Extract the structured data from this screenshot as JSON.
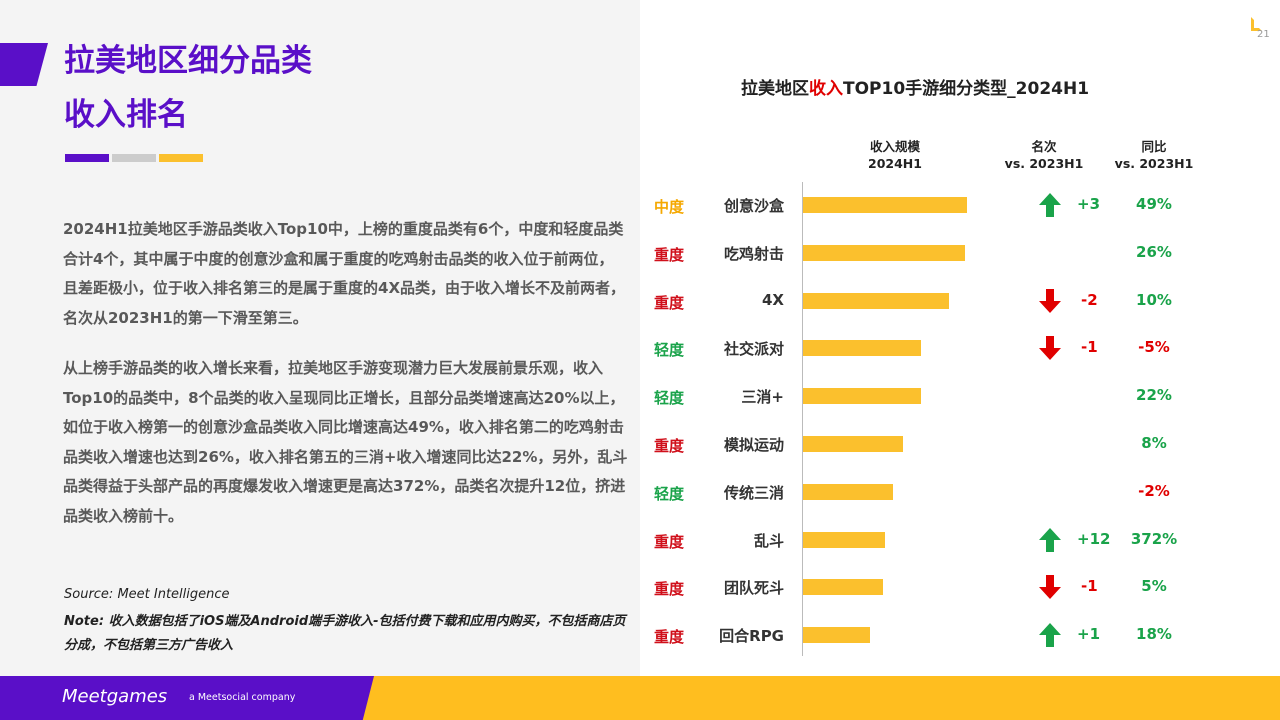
{
  "colors": {
    "purple": "#5a0fc8",
    "yellow_bar": "#fbc02d",
    "footer_yellow": "#ffbe1f",
    "mid_tier": "#f5a800",
    "heavy_tier": "#d0101b",
    "light_tier": "#1aa34a",
    "up_green": "#1aa34a",
    "down_red": "#e00000"
  },
  "page": {
    "title_line1": "拉美地区细分品类",
    "title_line2": "收入排名",
    "paragraph1": "2024H1拉美地区手游品类收入Top10中，上榜的重度品类有6个，中度和轻度品类合计4个，其中属于中度的创意沙盒和属于重度的吃鸡射击品类的收入位于前两位，且差距极小，位于收入排名第三的是属于重度的4X品类，由于收入增长不及前两者，名次从2023H1的第一下滑至第三。",
    "paragraph2": "从上榜手游品类的收入增长来看，拉美地区手游变现潜力巨大发展前景乐观，收入Top10的品类中，8个品类的收入呈现同比正增长，且部分品类增速高达20%以上，如位于收入榜第一的创意沙盒品类收入同比增速高达49%，收入排名第二的吃鸡射击品类收入增速也达到26%，收入排名第五的三消+收入增速同比达22%，另外，乱斗品类得益于头部产品的再度爆发收入增速更是高达372%，品类名次提升12位，挤进品类收入榜前十。",
    "source": "Source: Meet Intelligence",
    "note": "Note: 收入数据包括了iOS端及Android端手游收入-包括付费下载和应用内购买，不包括商店页分成，不包括第三方广告收入",
    "page_number": "21",
    "brand": "Meetgames",
    "brand_sub": "a Meetsocial company"
  },
  "chart_data": {
    "type": "bar",
    "title_pre": "拉美地区",
    "title_highlight": "收入",
    "title_post": "TOP10手游细分类型_2024H1",
    "headers": {
      "revenue_l1": "收入规模",
      "revenue_l2": "2024H1",
      "rank_l1": "名次",
      "rank_l2": "vs. 2023H1",
      "yoy_l1": "同比",
      "yoy_l2": "vs. 2023H1"
    },
    "categories": [
      "创意沙盒",
      "吃鸡射击",
      "4X",
      "社交派对",
      "三消+",
      "模拟运动",
      "传统三消",
      "乱斗",
      "团队死斗",
      "回合RPG"
    ],
    "tiers": [
      "中度",
      "重度",
      "重度",
      "轻度",
      "轻度",
      "重度",
      "轻度",
      "重度",
      "重度",
      "重度"
    ],
    "values": [
      100,
      99,
      89,
      72,
      72,
      61,
      55,
      50,
      49,
      41
    ],
    "rank_change": [
      "+3",
      "",
      "-2",
      "-1",
      "",
      "",
      "",
      "+12",
      "-1",
      "+1"
    ],
    "rank_direction": [
      "up",
      "",
      "down",
      "down",
      "",
      "",
      "",
      "up",
      "down",
      "up"
    ],
    "yoy": [
      "49%",
      "26%",
      "10%",
      "-5%",
      "22%",
      "8%",
      "-2%",
      "372%",
      "5%",
      "18%"
    ],
    "xlim": [
      0,
      100
    ]
  }
}
